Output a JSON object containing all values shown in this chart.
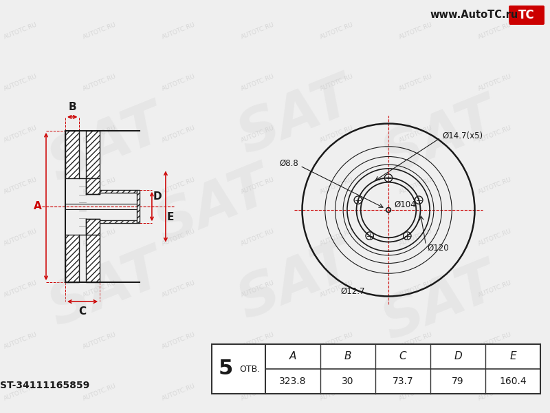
{
  "bg_color": "#efefef",
  "title_url": "www.AutoTC.ru",
  "part_number": "ST-34111165859",
  "table_headers": [
    "A",
    "B",
    "C",
    "D",
    "E"
  ],
  "table_values": [
    "323.8",
    "30",
    "73.7",
    "79",
    "160.4"
  ],
  "labels": {
    "d14": "Ø14.7(x5)",
    "d88": "Ø8.8",
    "d104": "Ø104",
    "d120": "Ø120",
    "d127": "Ø12.7"
  },
  "watermark_text": "AUTOTC.RU",
  "line_color": "#1a1a1a",
  "red_color": "#cc0000"
}
